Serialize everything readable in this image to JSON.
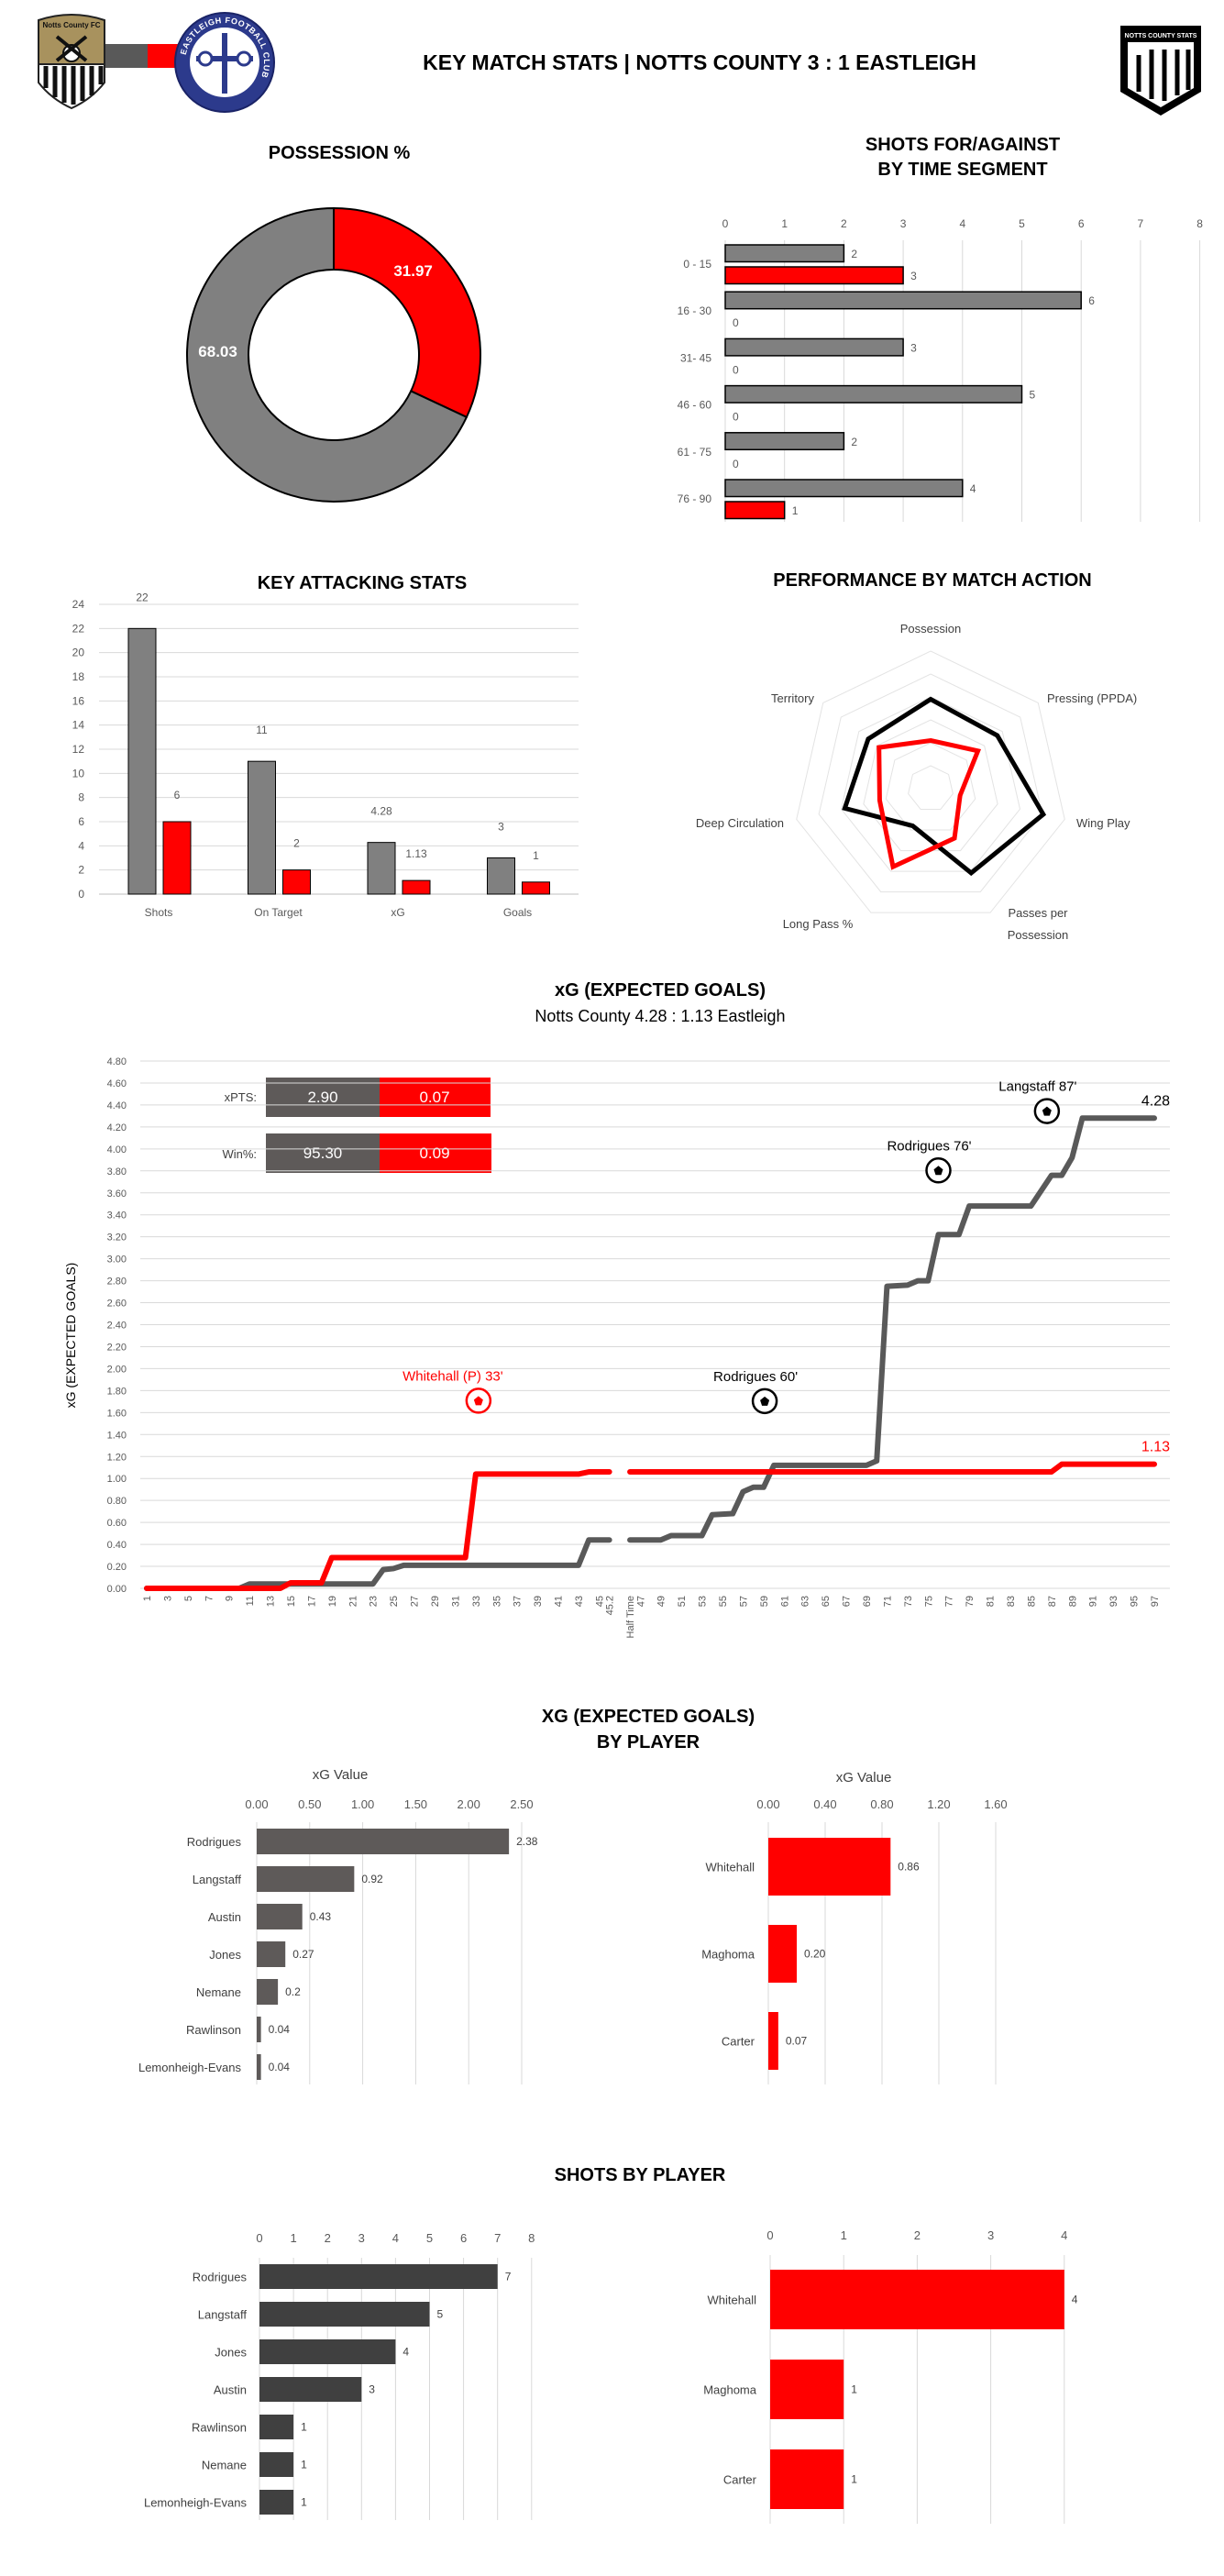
{
  "header": {
    "title": "KEY MATCH STATS | NOTTS COUNTY 3 : 1 EASTLEIGH",
    "home_crest_text": "Notts County FC",
    "away_crest_text": "EASTLEIGH FOOTBALL CLUB",
    "brand_logo_text": "NOTTS COUNTY STATS"
  },
  "colors": {
    "home": "#808080",
    "away": "#ff0000",
    "home_dark": "#5e5a59",
    "home_bar": "#404040"
  },
  "chart_data": [
    {
      "id": "possession",
      "type": "pie",
      "title": "POSSESSION %",
      "slices": [
        {
          "name": "Eastleigh",
          "value": 31.97
        },
        {
          "name": "Notts County",
          "value": 68.03
        }
      ]
    },
    {
      "id": "shots_segment",
      "type": "bar",
      "title": [
        "SHOTS FOR/AGAINST",
        "BY TIME SEGMENT"
      ],
      "categories": [
        "0 - 15",
        "16 - 30",
        "31- 45",
        "46 - 60",
        "61 - 75",
        "76 - 90"
      ],
      "series": [
        {
          "name": "Notts County",
          "values": [
            2,
            6,
            3,
            5,
            2,
            4
          ]
        },
        {
          "name": "Eastleigh",
          "values": [
            3,
            0,
            0,
            0,
            0,
            1
          ]
        }
      ],
      "xlim": [
        0,
        8
      ],
      "ticks": [
        "0",
        "1",
        "2",
        "3",
        "4",
        "5",
        "6",
        "7",
        "8"
      ]
    },
    {
      "id": "attacking",
      "type": "bar",
      "title": "KEY ATTACKING STATS",
      "categories": [
        "Shots",
        "On Target",
        "xG",
        "Goals"
      ],
      "series": [
        {
          "name": "Notts County",
          "values": [
            22,
            11,
            4.28,
            3
          ]
        },
        {
          "name": "Eastleigh",
          "values": [
            6,
            2,
            1.13,
            1
          ]
        }
      ],
      "ylim": [
        0,
        24
      ],
      "ticks": [
        "0",
        "2",
        "4",
        "6",
        "8",
        "10",
        "12",
        "14",
        "16",
        "18",
        "20",
        "22",
        "24"
      ]
    },
    {
      "id": "radar",
      "type": "radar",
      "title": "PERFORMANCE BY MATCH ACTION",
      "axes": [
        "Possession",
        "Pressing (PPDA)",
        "Wing Play",
        "Passes per Possession",
        "Long Pass %",
        "Deep Circulation",
        "Territory"
      ],
      "series": [
        {
          "name": "Notts County",
          "values": [
            0.65,
            0.62,
            0.84,
            0.68,
            0.3,
            0.64,
            0.58
          ]
        },
        {
          "name": "Eastleigh",
          "values": [
            0.35,
            0.44,
            0.22,
            0.4,
            0.63,
            0.38,
            0.48
          ]
        }
      ],
      "range": [
        0,
        1
      ]
    },
    {
      "id": "xg_timeline",
      "type": "line",
      "title": "xG (EXPECTED GOALS)",
      "subtitle": "Notts County 4.28 : 1.13 Eastleigh",
      "ylabel": "xG (EXPECTED GOALS)",
      "ylim": [
        0,
        4.8
      ],
      "yticks": [
        "0.00",
        "0.20",
        "0.40",
        "0.60",
        "0.80",
        "1.00",
        "1.20",
        "1.40",
        "1.60",
        "1.80",
        "2.00",
        "2.20",
        "2.40",
        "2.60",
        "2.80",
        "3.00",
        "3.20",
        "3.40",
        "3.60",
        "3.80",
        "4.00",
        "4.20",
        "4.40",
        "4.60",
        "4.80"
      ],
      "x_labels": [
        "1",
        "3",
        "5",
        "7",
        "9",
        "11",
        "13",
        "15",
        "17",
        "19",
        "21",
        "23",
        "25",
        "27",
        "29",
        "31",
        "33",
        "35",
        "37",
        "39",
        "41",
        "43",
        "45",
        "45.2",
        "Half Time",
        "47",
        "49",
        "51",
        "53",
        "55",
        "57",
        "59",
        "61",
        "63",
        "65",
        "67",
        "69",
        "71",
        "73",
        "75",
        "77",
        "79",
        "81",
        "83",
        "85",
        "87",
        "89",
        "91",
        "93",
        "95",
        "97"
      ],
      "series": [
        {
          "name": "Notts County",
          "end_label": "4.28",
          "segments": [
            [
              [
                1,
                0
              ],
              [
                10,
                0
              ],
              [
                11,
                0.04
              ],
              [
                23,
                0.04
              ],
              [
                24,
                0.17
              ],
              [
                25,
                0.18
              ],
              [
                26,
                0.21
              ],
              [
                43,
                0.21
              ],
              [
                44,
                0.44
              ],
              [
                45.2,
                0.44
              ]
            ],
            [
              [
                46,
                0.44
              ],
              [
                49,
                0.44
              ],
              [
                50,
                0.48
              ],
              [
                53,
                0.48
              ],
              [
                54,
                0.67
              ],
              [
                56,
                0.68
              ],
              [
                57,
                0.88
              ],
              [
                58,
                0.92
              ],
              [
                59,
                0.92
              ],
              [
                60,
                1.12
              ],
              [
                69,
                1.12
              ],
              [
                70,
                1.16
              ],
              [
                71,
                2.75
              ],
              [
                73,
                2.76
              ],
              [
                74,
                2.8
              ],
              [
                75,
                2.8
              ],
              [
                76,
                3.22
              ],
              [
                78,
                3.22
              ],
              [
                79,
                3.48
              ],
              [
                85,
                3.48
              ],
              [
                87,
                3.76
              ],
              [
                88,
                3.76
              ],
              [
                89,
                3.92
              ],
              [
                90,
                4.28
              ],
              [
                97,
                4.28
              ]
            ]
          ]
        },
        {
          "name": "Eastleigh",
          "end_label": "1.13",
          "segments": [
            [
              [
                1,
                0
              ],
              [
                14,
                0
              ],
              [
                15,
                0.05
              ],
              [
                18,
                0.05
              ],
              [
                19,
                0.28
              ],
              [
                32,
                0.28
              ],
              [
                33,
                1.04
              ],
              [
                43,
                1.04
              ],
              [
                44,
                1.06
              ],
              [
                45.2,
                1.06
              ]
            ],
            [
              [
                46,
                1.06
              ],
              [
                87,
                1.06
              ],
              [
                88,
                1.13
              ],
              [
                97,
                1.13
              ]
            ]
          ]
        }
      ],
      "goals": [
        {
          "label": "Whitehall (P) 33'",
          "team": "away",
          "minute": 33,
          "xg": 1.04
        },
        {
          "label": "Rodrigues 60'",
          "team": "home",
          "minute": 60,
          "xg": 1.12
        },
        {
          "label": "Rodrigues 76'",
          "team": "home",
          "minute": 76,
          "xg": 3.22
        },
        {
          "label": "Langstaff 87'",
          "team": "home",
          "minute": 87,
          "xg": 3.76
        }
      ],
      "summary": {
        "xpts_label": "xPTS:",
        "xpts_home": "2.90",
        "xpts_away": "0.07",
        "win_label": "Win%:",
        "win_home": "95.30",
        "win_away": "0.09"
      }
    },
    {
      "id": "xg_player_home",
      "type": "bar",
      "title": [
        "XG (EXPECTED GOALS)",
        "BY PLAYER"
      ],
      "xlabel": "xG Value",
      "categories": [
        "Rodrigues",
        "Langstaff",
        "Austin",
        "Jones",
        "Nemane",
        "Rawlinson",
        "Lemonheigh-Evans"
      ],
      "values": [
        2.38,
        0.92,
        0.43,
        0.27,
        0.2,
        0.04,
        0.04
      ],
      "value_labels": [
        "2.38",
        "0.92",
        "0.43",
        "0.27",
        "0.2",
        "0.04",
        "0.04"
      ],
      "xlim": [
        0,
        2.5
      ],
      "ticks": [
        "0.00",
        "0.50",
        "1.00",
        "1.50",
        "2.00",
        "2.50"
      ]
    },
    {
      "id": "xg_player_away",
      "type": "bar",
      "xlabel": "xG Value",
      "categories": [
        "Whitehall",
        "Maghoma",
        "Carter"
      ],
      "values": [
        0.86,
        0.2,
        0.07
      ],
      "value_labels": [
        "0.86",
        "0.20",
        "0.07"
      ],
      "xlim": [
        0,
        1.6
      ],
      "ticks": [
        "0.00",
        "0.40",
        "0.80",
        "1.20",
        "1.60"
      ]
    },
    {
      "id": "shots_player_home",
      "type": "bar",
      "title": "SHOTS BY PLAYER",
      "categories": [
        "Rodrigues",
        "Langstaff",
        "Jones",
        "Austin",
        "Rawlinson",
        "Nemane",
        "Lemonheigh-Evans"
      ],
      "values": [
        7,
        5,
        4,
        3,
        1,
        1,
        1
      ],
      "value_labels": [
        "7",
        "5",
        "4",
        "3",
        "1",
        "1",
        "1"
      ],
      "xlim": [
        0,
        8
      ],
      "ticks": [
        "0",
        "1",
        "2",
        "3",
        "4",
        "5",
        "6",
        "7",
        "8"
      ]
    },
    {
      "id": "shots_player_away",
      "type": "bar",
      "categories": [
        "Whitehall",
        "Maghoma",
        "Carter"
      ],
      "values": [
        4,
        1,
        1
      ],
      "value_labels": [
        "4",
        "1",
        "1"
      ],
      "xlim": [
        0,
        4
      ],
      "ticks": [
        "0",
        "1",
        "2",
        "3",
        "4"
      ]
    }
  ]
}
